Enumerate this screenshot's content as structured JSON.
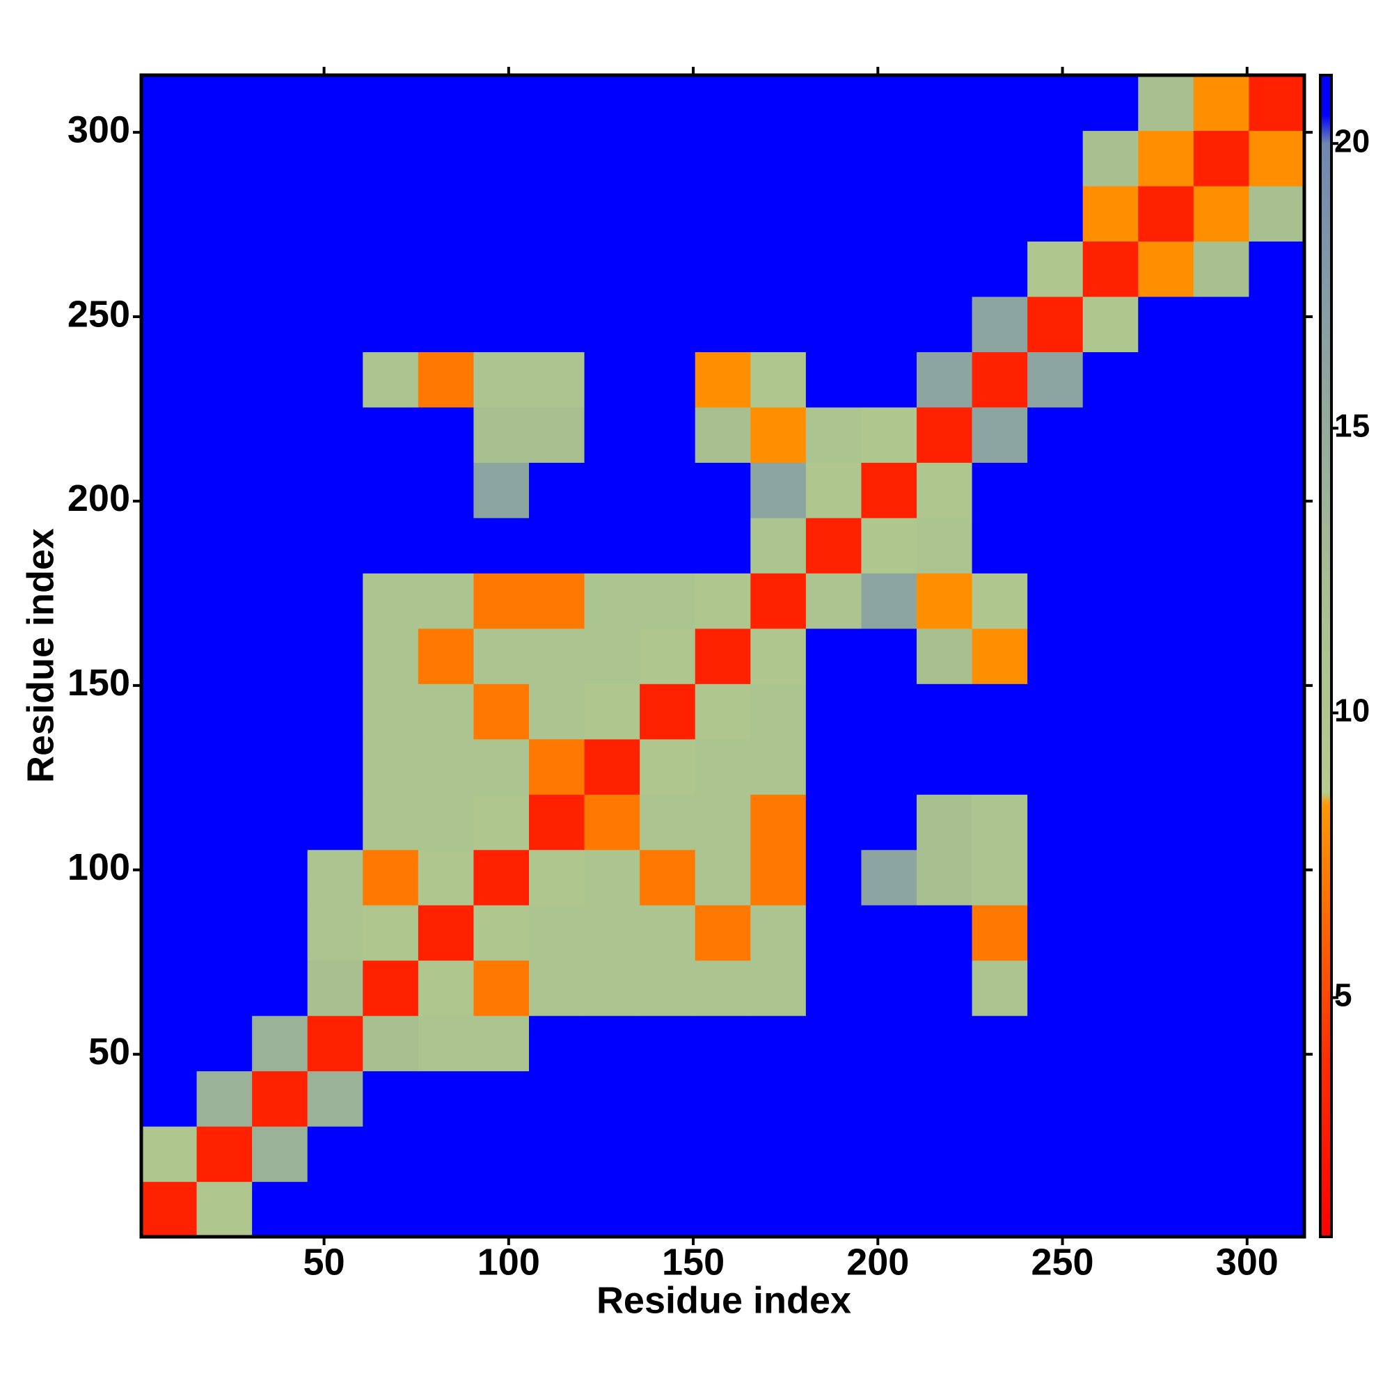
{
  "chart_data": {
    "type": "heatmap",
    "xlabel": "Residue index",
    "ylabel": "Residue index",
    "x": [
      8,
      23,
      38,
      53,
      68,
      83,
      98,
      113,
      128,
      143,
      158,
      173,
      188,
      203,
      218,
      233,
      248,
      263,
      278,
      293,
      308
    ],
    "y": [
      8,
      23,
      38,
      53,
      68,
      83,
      98,
      113,
      128,
      143,
      158,
      173,
      188,
      203,
      218,
      233,
      248,
      263,
      278,
      293,
      308
    ],
    "xlim": [
      0.5,
      315.5
    ],
    "ylim": [
      0.5,
      315.5
    ],
    "xticks": [
      50,
      100,
      150,
      200,
      250,
      300
    ],
    "yticks": [
      50,
      100,
      150,
      200,
      250,
      300
    ],
    "zlim": [
      0.8,
      21.2
    ],
    "zticks": [
      5,
      10,
      15,
      20
    ],
    "colorscale": [
      [
        0.8,
        "#ff0000"
      ],
      [
        4,
        "#ff3000"
      ],
      [
        8.4,
        "#ff9900"
      ],
      [
        8.6,
        "#b4cc8c"
      ],
      [
        12,
        "#a8c090"
      ],
      [
        18,
        "#7f98a8"
      ],
      [
        20,
        "#6f88b0"
      ],
      [
        20.5,
        "#0000ff"
      ],
      [
        21.2,
        "#0000ff"
      ]
    ],
    "z": [
      [
        3,
        10,
        21,
        21,
        21,
        21,
        21,
        21,
        21,
        21,
        21,
        21,
        21,
        21,
        21,
        21,
        21,
        21,
        21,
        21,
        21
      ],
      [
        10,
        3,
        14,
        21,
        21,
        21,
        21,
        21,
        21,
        21,
        21,
        21,
        21,
        21,
        21,
        21,
        21,
        21,
        21,
        21,
        21
      ],
      [
        21,
        14,
        3,
        14,
        21,
        21,
        21,
        21,
        21,
        21,
        21,
        21,
        21,
        21,
        21,
        21,
        21,
        21,
        21,
        21,
        21
      ],
      [
        21,
        21,
        14,
        3,
        12,
        11,
        11,
        21,
        21,
        21,
        21,
        21,
        21,
        21,
        21,
        21,
        21,
        21,
        21,
        21,
        21
      ],
      [
        21,
        21,
        21,
        12,
        3,
        10,
        7,
        11,
        11,
        11,
        11,
        11,
        21,
        21,
        21,
        11,
        21,
        21,
        21,
        21,
        21
      ],
      [
        21,
        21,
        21,
        11,
        10,
        3,
        10,
        11,
        11,
        11,
        7,
        11,
        21,
        21,
        21,
        7,
        21,
        21,
        21,
        21,
        21
      ],
      [
        21,
        21,
        21,
        11,
        7,
        10,
        3,
        10,
        11,
        7,
        11,
        7,
        21,
        16,
        12,
        11,
        21,
        21,
        21,
        21,
        21
      ],
      [
        21,
        21,
        21,
        21,
        11,
        11,
        10,
        3,
        7,
        11,
        11,
        7,
        21,
        21,
        12,
        11,
        21,
        21,
        21,
        21,
        21
      ],
      [
        21,
        21,
        21,
        21,
        11,
        11,
        11,
        7,
        3,
        10,
        11,
        11,
        21,
        21,
        21,
        21,
        21,
        21,
        21,
        21,
        21
      ],
      [
        21,
        21,
        21,
        21,
        11,
        11,
        7,
        11,
        10,
        3,
        10,
        11,
        21,
        21,
        21,
        21,
        21,
        21,
        21,
        21,
        21
      ],
      [
        21,
        21,
        21,
        21,
        11,
        7,
        11,
        11,
        11,
        10,
        3,
        10,
        21,
        21,
        12,
        8,
        21,
        21,
        21,
        21,
        21
      ],
      [
        21,
        21,
        21,
        21,
        11,
        11,
        7,
        7,
        11,
        11,
        10,
        3,
        11,
        16,
        8,
        10,
        21,
        21,
        21,
        21,
        21
      ],
      [
        21,
        21,
        21,
        21,
        21,
        21,
        21,
        21,
        21,
        21,
        21,
        11,
        3,
        10,
        11,
        21,
        21,
        21,
        21,
        21,
        21
      ],
      [
        21,
        21,
        21,
        21,
        21,
        21,
        16,
        21,
        21,
        21,
        21,
        16,
        10,
        3,
        10,
        21,
        21,
        21,
        21,
        21,
        21
      ],
      [
        21,
        21,
        21,
        21,
        21,
        21,
        12,
        12,
        21,
        21,
        12,
        8,
        11,
        10,
        3,
        16,
        21,
        21,
        21,
        21,
        21
      ],
      [
        21,
        21,
        21,
        21,
        11,
        7,
        11,
        11,
        21,
        21,
        8,
        10,
        21,
        21,
        16,
        3,
        16,
        21,
        21,
        21,
        21
      ],
      [
        21,
        21,
        21,
        21,
        21,
        21,
        21,
        21,
        21,
        21,
        21,
        21,
        21,
        21,
        21,
        16,
        3,
        10,
        21,
        21,
        21
      ],
      [
        21,
        21,
        21,
        21,
        21,
        21,
        21,
        21,
        21,
        21,
        21,
        21,
        21,
        21,
        21,
        21,
        10,
        3,
        8,
        12,
        21
      ],
      [
        21,
        21,
        21,
        21,
        21,
        21,
        21,
        21,
        21,
        21,
        21,
        21,
        21,
        21,
        21,
        21,
        21,
        8,
        3,
        8,
        12
      ],
      [
        21,
        21,
        21,
        21,
        21,
        21,
        21,
        21,
        21,
        21,
        21,
        21,
        21,
        21,
        21,
        21,
        21,
        12,
        8,
        3,
        8
      ],
      [
        21,
        21,
        21,
        21,
        21,
        21,
        21,
        21,
        21,
        21,
        21,
        21,
        21,
        21,
        21,
        21,
        21,
        21,
        12,
        8,
        3
      ]
    ]
  }
}
